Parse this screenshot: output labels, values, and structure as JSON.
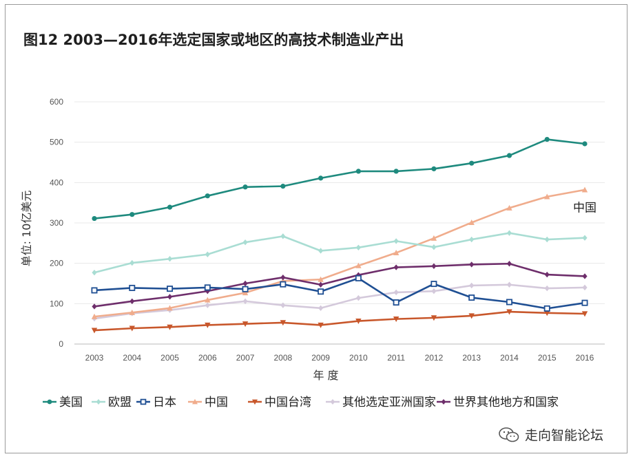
{
  "chart_data": {
    "type": "line",
    "title": "图12   2003—2016年选定国家或地区的高技术制造业产出",
    "xlabel": "年 度",
    "ylabel": "单位: 10亿美元",
    "ylim": [
      0,
      600
    ],
    "yticks": [
      0,
      100,
      200,
      300,
      400,
      500,
      600
    ],
    "grid": true,
    "legend_position": "bottom",
    "categories": [
      "2003",
      "2004",
      "2005",
      "2006",
      "2007",
      "2008",
      "2009",
      "2010",
      "2011",
      "2012",
      "2013",
      "2014",
      "2015",
      "2016"
    ],
    "series": [
      {
        "name": "美国",
        "color": "#1e8a7e",
        "marker": "circle",
        "values": [
          311,
          321,
          339,
          367,
          389,
          391,
          411,
          428,
          428,
          434,
          448,
          467,
          507,
          496
        ]
      },
      {
        "name": "欧盟",
        "color": "#a9ddd3",
        "marker": "diamond",
        "values": [
          177,
          201,
          211,
          222,
          252,
          267,
          231,
          239,
          255,
          240,
          259,
          275,
          259,
          263
        ]
      },
      {
        "name": "日本",
        "color": "#1f4f93",
        "marker": "square",
        "values": [
          133,
          139,
          137,
          140,
          136,
          148,
          130,
          163,
          103,
          149,
          115,
          104,
          88,
          102
        ]
      },
      {
        "name": "中国",
        "color": "#f0ac8c",
        "marker": "triangle-up",
        "values": [
          68,
          78,
          89,
          109,
          127,
          156,
          160,
          194,
          226,
          262,
          301,
          337,
          365,
          382
        ]
      },
      {
        "name": "中国台湾",
        "color": "#c8572b",
        "marker": "triangle-down",
        "values": [
          34,
          39,
          42,
          47,
          50,
          53,
          47,
          57,
          62,
          65,
          70,
          80,
          77,
          75
        ]
      },
      {
        "name": "其他选定亚洲国家",
        "color": "#d4c9db",
        "marker": "diamond",
        "values": [
          63,
          76,
          84,
          96,
          106,
          96,
          89,
          114,
          128,
          131,
          145,
          147,
          138,
          140
        ]
      },
      {
        "name": "世界其他地方和国家",
        "color": "#6e2e6b",
        "marker": "diamond",
        "values": [
          93,
          106,
          117,
          131,
          150,
          165,
          147,
          171,
          190,
          193,
          197,
          199,
          172,
          168
        ]
      }
    ],
    "annotations": [
      {
        "text": "中国",
        "series": "中国",
        "year": "2016",
        "value": 338
      }
    ]
  },
  "watermark": {
    "text": "走向智能论坛",
    "icon": "wechat-icon"
  }
}
